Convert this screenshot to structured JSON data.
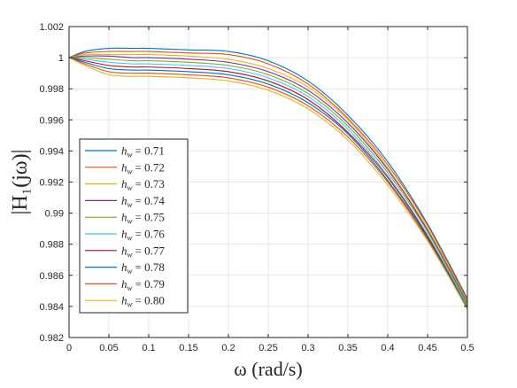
{
  "chart_data": {
    "type": "line",
    "title": "",
    "xlabel": "ω (rad/s)",
    "ylabel": "|H₁(jω)|",
    "xlim": [
      0,
      0.5
    ],
    "ylim": [
      0.982,
      1.002
    ],
    "xticks": [
      0,
      0.05,
      0.1,
      0.15,
      0.2,
      0.25,
      0.3,
      0.35,
      0.4,
      0.45,
      0.5
    ],
    "xtick_labels": [
      "0",
      "0.05",
      "0.1",
      "0.15",
      "0.2",
      "0.25",
      "0.3",
      "0.35",
      "0.4",
      "0.45",
      "0.5"
    ],
    "yticks": [
      0.982,
      0.984,
      0.986,
      0.988,
      0.99,
      0.992,
      0.994,
      0.996,
      0.998,
      1,
      1.002
    ],
    "ytick_labels": [
      "0.982",
      "0.984",
      "0.986",
      "0.988",
      "0.99",
      "0.992",
      "0.994",
      "0.996",
      "0.998",
      "1",
      "1.002"
    ],
    "grid": true,
    "legend_position": "lower-left",
    "x": [
      0,
      0.02,
      0.05,
      0.08,
      0.1,
      0.15,
      0.2,
      0.25,
      0.3,
      0.35,
      0.4,
      0.45,
      0.5
    ],
    "series": [
      {
        "name": "h_w = 0.71",
        "label_base": "h",
        "label_sub": "w",
        "label_value": "= 0.71",
        "color": "#0072BD",
        "values": [
          1.0,
          1.0004,
          1.0006,
          1.0006,
          1.0006,
          1.0005,
          1.0004,
          0.9998,
          0.9985,
          0.9963,
          0.9933,
          0.9893,
          0.9845
        ]
      },
      {
        "name": "h_w = 0.72",
        "label_base": "h",
        "label_sub": "w",
        "label_value": "= 0.72",
        "color": "#D95319",
        "values": [
          1.0,
          1.0003,
          1.0004,
          1.0004,
          1.0004,
          1.0003,
          1.0002,
          0.9996,
          0.9983,
          0.9961,
          0.9931,
          0.9892,
          0.9844
        ]
      },
      {
        "name": "h_w = 0.73",
        "label_base": "h",
        "label_sub": "w",
        "label_value": "= 0.73",
        "color": "#EDB120",
        "values": [
          1.0,
          1.0002,
          1.0002,
          1.0002,
          1.0002,
          1.0001,
          0.9999,
          0.9993,
          0.9981,
          0.996,
          0.9929,
          0.989,
          0.9843
        ]
      },
      {
        "name": "h_w = 0.74",
        "label_base": "h",
        "label_sub": "w",
        "label_value": "= 0.74",
        "color": "#7E2F8E",
        "values": [
          1.0,
          1.0001,
          1.0001,
          1.0,
          1.0,
          0.9999,
          0.9997,
          0.9991,
          0.9979,
          0.9958,
          0.9928,
          0.9889,
          0.9842
        ]
      },
      {
        "name": "h_w = 0.75",
        "label_base": "h",
        "label_sub": "w",
        "label_value": "= 0.75",
        "color": "#77AC30",
        "values": [
          1.0,
          1.0,
          0.9999,
          0.9998,
          0.9998,
          0.9997,
          0.9995,
          0.9989,
          0.9977,
          0.9956,
          0.9926,
          0.9888,
          0.9841
        ]
      },
      {
        "name": "h_w = 0.76",
        "label_base": "h",
        "label_sub": "w",
        "label_value": "= 0.76",
        "color": "#4DBEEE",
        "values": [
          1.0,
          0.9999,
          0.9997,
          0.9996,
          0.9996,
          0.9995,
          0.9993,
          0.9987,
          0.9975,
          0.9954,
          0.9924,
          0.9886,
          0.984
        ]
      },
      {
        "name": "h_w = 0.77",
        "label_base": "h",
        "label_sub": "w",
        "label_value": "= 0.77",
        "color": "#A2142F",
        "values": [
          1.0,
          0.9998,
          0.9995,
          0.9994,
          0.9994,
          0.9993,
          0.9991,
          0.9985,
          0.9973,
          0.9952,
          0.9923,
          0.9885,
          0.9839
        ]
      },
      {
        "name": "h_w = 0.78",
        "label_base": "h",
        "label_sub": "w",
        "label_value": "= 0.78",
        "color": "#0072BD",
        "values": [
          1.0,
          0.9997,
          0.9993,
          0.9992,
          0.9992,
          0.9991,
          0.9989,
          0.9983,
          0.9971,
          0.9951,
          0.9921,
          0.9884,
          0.9839
        ]
      },
      {
        "name": "h_w = 0.79",
        "label_base": "h",
        "label_sub": "w",
        "label_value": "= 0.79",
        "color": "#D95319",
        "values": [
          1.0,
          0.9996,
          0.9991,
          0.999,
          0.999,
          0.9989,
          0.9987,
          0.9981,
          0.9969,
          0.9949,
          0.992,
          0.9883,
          0.9838
        ]
      },
      {
        "name": "h_w = 0.80",
        "label_base": "h",
        "label_sub": "w",
        "label_value": "= 0.80",
        "color": "#EDB120",
        "values": [
          1.0,
          0.9995,
          0.9989,
          0.9988,
          0.9988,
          0.9987,
          0.9985,
          0.9979,
          0.9967,
          0.9947,
          0.9918,
          0.9882,
          0.9838
        ]
      }
    ]
  }
}
